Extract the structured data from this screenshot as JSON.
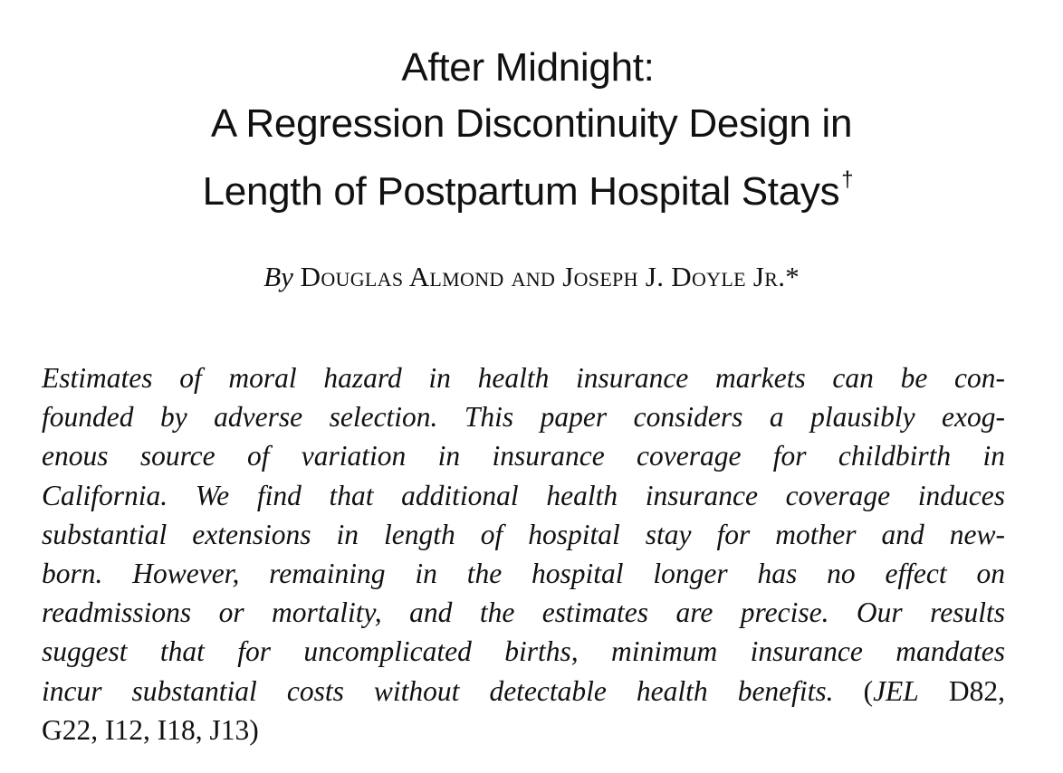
{
  "paper": {
    "title_lines": [
      "After Midnight:",
      "A Regression Discontinuity Design in",
      "Length of Postpartum Hospital Stays"
    ],
    "title_dagger": "†",
    "byline": {
      "by": "By",
      "authors": "Douglas Almond and Joseph J. Doyle Jr.",
      "star": "*"
    },
    "abstract_lines": [
      "Estimates of moral hazard in health insurance markets can be con-",
      "founded by adverse selection. This paper considers a plausibly exog-",
      "enous source of variation in insurance coverage for childbirth in",
      "California. We find that additional health insurance coverage induces",
      "substantial extensions in length of hospital stay for mother and new-",
      "born. However, remaining in the hospital longer has no effect on",
      "readmissions or mortality, and the estimates are precise. Our results",
      "suggest that for uncomplicated births, minimum insurance mandates"
    ],
    "abstract_line9_text": "incur substantial costs without detectable health benefits.",
    "jel_open": " (",
    "jel_label": "JEL",
    "jel_codes_line9": " D82,",
    "jel_codes_line10": "G22, I12, I18, J13)"
  }
}
